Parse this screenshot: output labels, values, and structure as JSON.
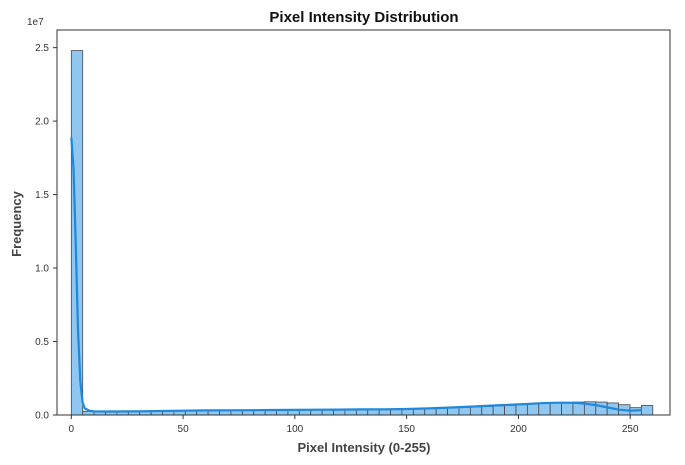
{
  "chart_data": {
    "type": "bar",
    "title": "Pixel Intensity Distribution",
    "xlabel": "Pixel Intensity (0-255)",
    "ylabel": "Frequency",
    "y_scale_label": "1e7",
    "xlim": [
      -6.4,
      267.8
    ],
    "ylim": [
      0,
      26.2
    ],
    "x_ticks": [
      {
        "value": 0,
        "label": "0"
      },
      {
        "value": 50,
        "label": "50"
      },
      {
        "value": 100,
        "label": "100"
      },
      {
        "value": 150,
        "label": "150"
      },
      {
        "value": 200,
        "label": "200"
      },
      {
        "value": 250,
        "label": "250"
      }
    ],
    "y_ticks": [
      {
        "value": 0,
        "label": "0.0"
      },
      {
        "value": 5,
        "label": "0.5"
      },
      {
        "value": 10,
        "label": "1.0"
      },
      {
        "value": 15,
        "label": "1.5"
      },
      {
        "value": 20,
        "label": "2.0"
      },
      {
        "value": 25,
        "label": "2.5"
      }
    ],
    "bin_width": 5.1,
    "bin_start": 0,
    "values": [
      24.8,
      0.25,
      0.25,
      0.25,
      0.25,
      0.26,
      0.26,
      0.27,
      0.27,
      0.28,
      0.28,
      0.29,
      0.3,
      0.3,
      0.31,
      0.31,
      0.32,
      0.32,
      0.33,
      0.33,
      0.34,
      0.35,
      0.35,
      0.36,
      0.37,
      0.37,
      0.38,
      0.39,
      0.4,
      0.41,
      0.43,
      0.45,
      0.47,
      0.5,
      0.52,
      0.55,
      0.58,
      0.62,
      0.66,
      0.7,
      0.74,
      0.78,
      0.82,
      0.86,
      0.88,
      0.9,
      0.88,
      0.82,
      0.7,
      0.5,
      0.65
    ],
    "kde": {
      "x": [
        0,
        1,
        2,
        3,
        4,
        5,
        6,
        8,
        10,
        15,
        20,
        30,
        40,
        50,
        60,
        70,
        80,
        90,
        100,
        110,
        120,
        130,
        140,
        150,
        160,
        170,
        180,
        190,
        200,
        205,
        210,
        215,
        220,
        225,
        230,
        235,
        240,
        245,
        250,
        255
      ],
      "y": [
        18.9,
        16.8,
        11.5,
        5.8,
        2.3,
        0.9,
        0.45,
        0.3,
        0.25,
        0.24,
        0.24,
        0.25,
        0.27,
        0.29,
        0.31,
        0.32,
        0.33,
        0.34,
        0.35,
        0.36,
        0.37,
        0.38,
        0.39,
        0.41,
        0.45,
        0.51,
        0.58,
        0.65,
        0.72,
        0.76,
        0.8,
        0.83,
        0.84,
        0.83,
        0.77,
        0.66,
        0.51,
        0.36,
        0.29,
        0.33
      ]
    },
    "colors": {
      "bar_fill": "#8fc7f0",
      "bar_edge": "#4a4a4a",
      "kde_line": "#1f88dc",
      "frame": "#333333"
    },
    "grid": false,
    "legend": "none"
  }
}
